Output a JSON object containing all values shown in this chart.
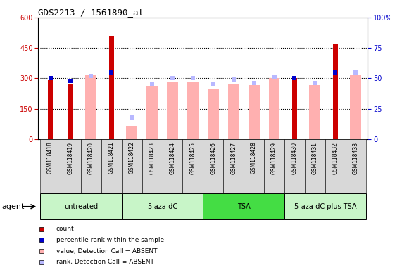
{
  "title": "GDS2213 / 1561890_at",
  "samples": [
    "GSM118418",
    "GSM118419",
    "GSM118420",
    "GSM118421",
    "GSM118422",
    "GSM118423",
    "GSM118424",
    "GSM118425",
    "GSM118426",
    "GSM118427",
    "GSM118428",
    "GSM118429",
    "GSM118430",
    "GSM118431",
    "GSM118432",
    "GSM118433"
  ],
  "count": [
    290,
    270,
    0,
    510,
    0,
    0,
    0,
    0,
    0,
    0,
    0,
    0,
    300,
    0,
    470,
    0
  ],
  "percentile_rank": [
    50,
    48,
    null,
    55,
    null,
    null,
    null,
    null,
    null,
    null,
    null,
    null,
    50,
    null,
    55,
    null
  ],
  "value_absent": [
    null,
    null,
    315,
    null,
    65,
    260,
    285,
    285,
    250,
    275,
    265,
    300,
    null,
    265,
    null,
    320
  ],
  "rank_absent": [
    null,
    null,
    52,
    null,
    18,
    45,
    50,
    50,
    45,
    49,
    46,
    51,
    null,
    46,
    null,
    55
  ],
  "groups": [
    {
      "label": "untreated",
      "start": 0,
      "end": 3
    },
    {
      "label": "5-aza-dC",
      "start": 4,
      "end": 7
    },
    {
      "label": "TSA",
      "start": 8,
      "end": 11
    },
    {
      "label": "5-aza-dC plus TSA",
      "start": 12,
      "end": 15
    }
  ],
  "group_colors": [
    "#c8f5c8",
    "#c8f5c8",
    "#44dd44",
    "#c8f5c8"
  ],
  "ylim_left": [
    0,
    600
  ],
  "ylim_right": [
    0,
    100
  ],
  "yticks_left": [
    0,
    150,
    300,
    450,
    600
  ],
  "yticks_right": [
    0,
    25,
    50,
    75,
    100
  ],
  "count_color": "#cc0000",
  "rank_color": "#0000cc",
  "value_absent_color": "#ffb0b0",
  "rank_absent_color": "#b8b8ff",
  "bg_color": "#ffffff",
  "grid_color": "#aaaaaa",
  "xtick_bg": "#d8d8d8"
}
